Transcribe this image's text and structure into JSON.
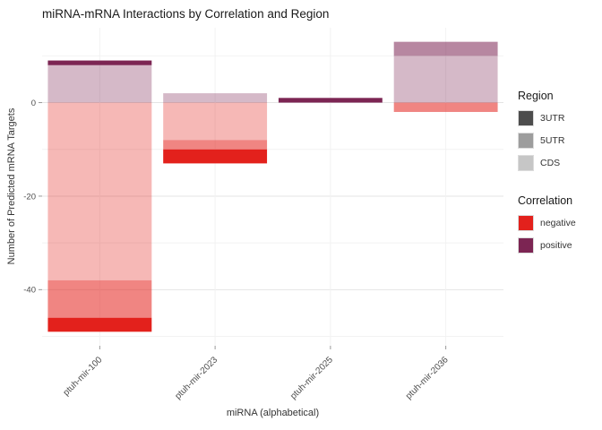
{
  "title": "miRNA-mRNA Interactions by Correlation and Region",
  "axes": {
    "x_label": "miRNA (alphabetical)",
    "y_label": "Number of Predicted mRNA Targets"
  },
  "legend": {
    "region": {
      "title": "Region",
      "items": [
        {
          "label": "3UTR",
          "alpha_key": "3UTR"
        },
        {
          "label": "5UTR",
          "alpha_key": "5UTR"
        },
        {
          "label": "CDS",
          "alpha_key": "CDS"
        }
      ]
    },
    "correlation": {
      "title": "Correlation",
      "items": [
        {
          "label": "negative",
          "color_key": "negative"
        },
        {
          "label": "positive",
          "color_key": "positive"
        }
      ]
    }
  },
  "chart_data": {
    "type": "bar",
    "stacked": true,
    "title": "miRNA-mRNA Interactions by Correlation and Region",
    "xlabel": "miRNA (alphabetical)",
    "ylabel": "Number of Predicted mRNA Targets",
    "categories": [
      "ptuh-mir-100",
      "ptuh-mir-2023",
      "ptuh-mir-2025",
      "ptuh-mir-2036"
    ],
    "yticks": [
      0,
      -20,
      -40
    ],
    "yticks_minor": [
      10,
      -10,
      -30,
      -50
    ],
    "ylim": [
      -52,
      16
    ],
    "grid": true,
    "legend_position": "right",
    "segments_by_category": {
      "ptuh-mir-100": [
        {
          "region": "CDS",
          "correlation": "positive",
          "value": 8
        },
        {
          "region": "3UTR",
          "correlation": "positive",
          "value": 1
        },
        {
          "region": "CDS",
          "correlation": "negative",
          "value": -38
        },
        {
          "region": "5UTR",
          "correlation": "negative",
          "value": -8
        },
        {
          "region": "3UTR",
          "correlation": "negative",
          "value": -3
        }
      ],
      "ptuh-mir-2023": [
        {
          "region": "CDS",
          "correlation": "positive",
          "value": 2
        },
        {
          "region": "CDS",
          "correlation": "negative",
          "value": -8
        },
        {
          "region": "5UTR",
          "correlation": "negative",
          "value": -2
        },
        {
          "region": "3UTR",
          "correlation": "negative",
          "value": -3
        }
      ],
      "ptuh-mir-2025": [
        {
          "region": "3UTR",
          "correlation": "positive",
          "value": 1
        }
      ],
      "ptuh-mir-2036": [
        {
          "region": "CDS",
          "correlation": "positive",
          "value": 10
        },
        {
          "region": "5UTR",
          "correlation": "positive",
          "value": 3
        },
        {
          "region": "5UTR",
          "correlation": "negative",
          "value": -2
        }
      ]
    },
    "colors": {
      "correlation": {
        "negative": "#e3211c",
        "positive": "#7c2553"
      },
      "region_alpha": {
        "3UTR": 1.0,
        "5UTR": 0.55,
        "CDS": 0.32
      },
      "legend_gray": "#4d4d4d",
      "grid_major": "#e4e4e4",
      "grid_minor": "#f2f2f2",
      "axis_text": "#4d4d4d"
    }
  }
}
